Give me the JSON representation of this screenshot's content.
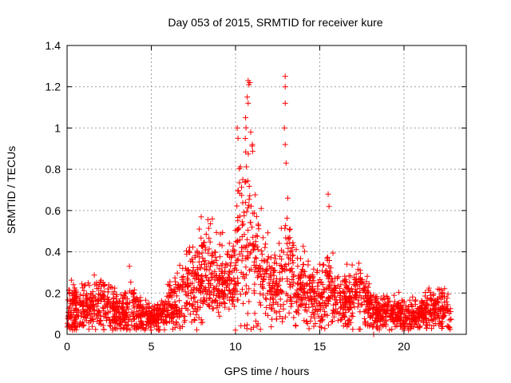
{
  "chart_data": {
    "type": "scatter",
    "title": "Day 053 of 2015, SRMTID for receiver kure",
    "xlabel": "GPS time / hours",
    "ylabel": "SRMTID / TECUs",
    "xlim": [
      0,
      23.7
    ],
    "ylim": [
      0,
      1.4
    ],
    "x_ticks": [
      "0",
      "5",
      "10",
      "15",
      "20"
    ],
    "x_tick_values": [
      0,
      5,
      10,
      15,
      20
    ],
    "y_ticks": [
      "0",
      "0.2",
      "0.4",
      "0.6",
      "0.8",
      "1",
      "1.2",
      "1.4"
    ],
    "y_tick_values": [
      0,
      0.2,
      0.4,
      0.6,
      0.8,
      1.0,
      1.2,
      1.4
    ],
    "grid": true,
    "marker": "+",
    "color": "#ff0000",
    "series": [
      {
        "name": "SRMTID",
        "profile_hours": [
          0,
          0.5,
          1,
          1.5,
          2,
          2.5,
          3,
          3.5,
          4,
          4.5,
          5,
          5.5,
          6,
          6.5,
          7,
          7.5,
          8,
          8.5,
          9,
          9.5,
          10,
          10.25,
          10.5,
          10.75,
          11,
          11.25,
          11.5,
          12,
          12.5,
          13,
          13.5,
          14,
          14.5,
          15,
          15.5,
          16,
          16.5,
          17,
          17.5,
          18,
          18.5,
          19,
          19.5,
          20,
          20.5,
          21,
          21.5,
          22,
          22.5,
          22.8
        ],
        "profile_median": [
          0.12,
          0.13,
          0.12,
          0.13,
          0.15,
          0.12,
          0.1,
          0.1,
          0.12,
          0.09,
          0.08,
          0.09,
          0.12,
          0.15,
          0.22,
          0.25,
          0.3,
          0.33,
          0.26,
          0.24,
          0.3,
          0.55,
          0.45,
          0.5,
          0.45,
          0.38,
          0.32,
          0.25,
          0.22,
          0.35,
          0.25,
          0.22,
          0.18,
          0.17,
          0.22,
          0.17,
          0.15,
          0.2,
          0.22,
          0.12,
          0.1,
          0.11,
          0.11,
          0.09,
          0.08,
          0.09,
          0.12,
          0.13,
          0.12,
          0.07
        ],
        "profile_spread": [
          0.06,
          0.07,
          0.06,
          0.07,
          0.07,
          0.06,
          0.05,
          0.05,
          0.06,
          0.04,
          0.03,
          0.04,
          0.05,
          0.08,
          0.1,
          0.1,
          0.12,
          0.12,
          0.09,
          0.08,
          0.12,
          0.25,
          0.25,
          0.25,
          0.2,
          0.15,
          0.12,
          0.09,
          0.08,
          0.15,
          0.1,
          0.09,
          0.07,
          0.07,
          0.1,
          0.07,
          0.06,
          0.08,
          0.08,
          0.05,
          0.04,
          0.04,
          0.04,
          0.04,
          0.04,
          0.04,
          0.05,
          0.06,
          0.06,
          0.03
        ],
        "peaks": [
          {
            "x": 10.75,
            "y": 1.23
          },
          {
            "x": 10.8,
            "y": 1.21
          },
          {
            "x": 10.85,
            "y": 1.22
          },
          {
            "x": 10.7,
            "y": 1.15
          },
          {
            "x": 10.75,
            "y": 1.12
          },
          {
            "x": 10.1,
            "y": 1.0
          },
          {
            "x": 10.15,
            "y": 0.95
          },
          {
            "x": 10.6,
            "y": 1.05
          },
          {
            "x": 10.9,
            "y": 0.98
          },
          {
            "x": 11.0,
            "y": 0.92
          },
          {
            "x": 12.95,
            "y": 1.25
          },
          {
            "x": 12.95,
            "y": 1.2
          },
          {
            "x": 12.95,
            "y": 1.12
          },
          {
            "x": 12.9,
            "y": 1.0
          },
          {
            "x": 12.95,
            "y": 0.92
          },
          {
            "x": 13.0,
            "y": 0.83
          },
          {
            "x": 13.1,
            "y": 0.66
          },
          {
            "x": 15.5,
            "y": 0.68
          },
          {
            "x": 15.55,
            "y": 0.62
          },
          {
            "x": 3.7,
            "y": 0.33
          },
          {
            "x": 18.2,
            "y": 0.0
          }
        ]
      }
    ]
  }
}
